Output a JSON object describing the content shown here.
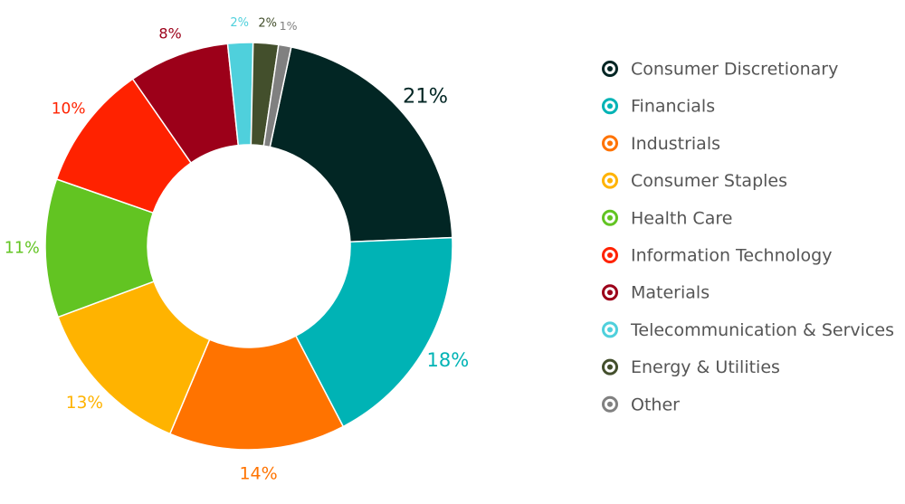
{
  "chart_data": {
    "type": "pie",
    "categories": [
      "Consumer Discretionary",
      "Financials",
      "Industrials",
      "Consumer Staples",
      "Health Care",
      "Information Technology",
      "Materials",
      "Telecommunication & Services",
      "Energy & Utilities",
      "Other"
    ],
    "values": [
      21,
      18,
      14,
      13,
      11,
      10,
      8,
      2,
      2,
      1
    ],
    "value_labels": [
      "21%",
      "18%",
      "14%",
      "13%",
      "11%",
      "10%",
      "8%",
      "2%",
      "2%",
      "1%"
    ],
    "colors": [
      "#022624",
      "#00b3b5",
      "#ff7300",
      "#ffb300",
      "#62c422",
      "#ff2200",
      "#9c0019",
      "#4fd0dc",
      "#434f2c",
      "#808080"
    ]
  }
}
